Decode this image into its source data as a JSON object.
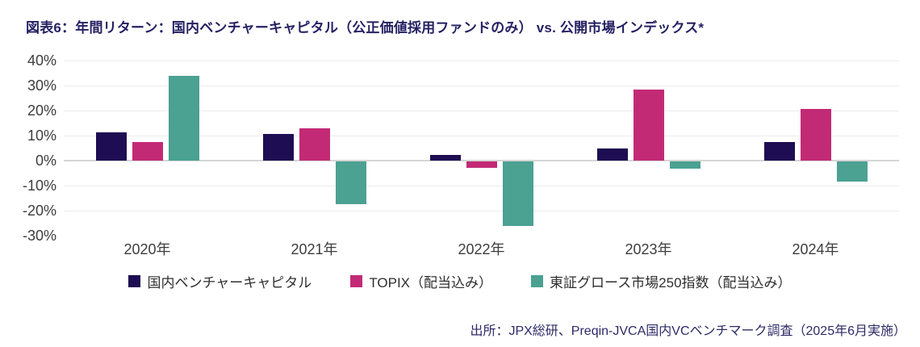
{
  "title": "図表6：年間リターン：国内ベンチャーキャピタル（公正価値採用ファンドのみ） vs. 公開市場インデックス*",
  "source": "出所：JPX総研、Preqin-JVCA国内VCベンチマーク調査（2025年6月実施）",
  "colors": {
    "title_text": "#262163",
    "axis_text": "#3d3d3d",
    "legend_text": "#2f2f2f",
    "source_text": "#2e2a67",
    "gridline": "#ebebeb",
    "zero_line": "#d5d5d5",
    "background": "#ffffff"
  },
  "chart_data": {
    "type": "bar",
    "title": "図表6：年間リターン：国内ベンチャーキャピタル（公正価値採用ファンドのみ） vs. 公開市場インデックス*",
    "categories": [
      "2020年",
      "2021年",
      "2022年",
      "2023年",
      "2024年"
    ],
    "series": [
      {
        "name": "国内ベンチャーキャピタル",
        "color": "#1e0d52",
        "values": [
          11.4,
          10.6,
          2.1,
          5.0,
          7.3
        ]
      },
      {
        "name": "TOPIX（配当込み）",
        "color": "#c32a76",
        "values": [
          7.4,
          12.8,
          -2.6,
          28.4,
          20.6
        ]
      },
      {
        "name": "東証グロース市場250指数（配当込み）",
        "color": "#4ba192",
        "values": [
          33.9,
          -17.0,
          -25.7,
          -3.0,
          -8.0
        ]
      }
    ],
    "xlabel": "",
    "ylabel": "",
    "ylim": [
      -30,
      40
    ],
    "yticks": [
      40,
      30,
      20,
      10,
      0,
      -10,
      -20,
      -30
    ],
    "gridline_ticks": [
      40,
      30,
      20,
      10,
      0,
      -10,
      -20
    ],
    "ytick_suffix": "%",
    "grid": true,
    "legend_position": "bottom"
  }
}
